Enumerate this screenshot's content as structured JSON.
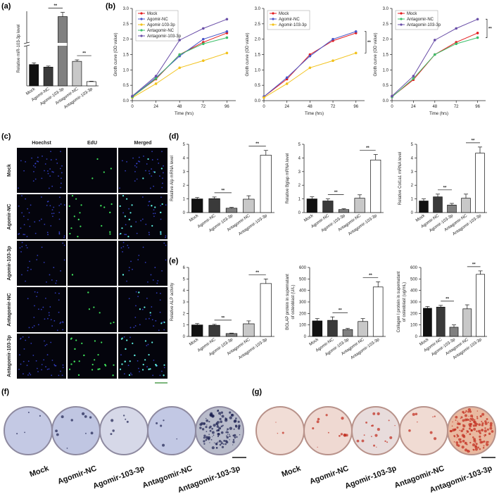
{
  "panel_labels": [
    "(a)",
    "(b)",
    "(c)",
    "(d)",
    "(e)",
    "(f)",
    "(g)"
  ],
  "chart_data": [
    {
      "type": "bar",
      "ylabel": "Relative miR-103-3p level",
      "categories": [
        "Mock",
        "Agomir-NC",
        "Agomir-103-3p",
        "Antagomir-NC",
        "Antagomir-103-3p"
      ],
      "values": [
        1.0,
        0.88,
        3.25,
        1.15,
        0.2
      ],
      "errors": [
        0.08,
        0.05,
        0.2,
        0.07,
        0.02
      ],
      "colors": [
        "#111111",
        "#3a3a3a",
        "#808080",
        "#c8c8c8",
        "#ffffff"
      ],
      "ylim": [
        0,
        3.5
      ],
      "annotations": [
        "**",
        "**"
      ]
    },
    {
      "type": "line",
      "xlabel": "Time (hrs)",
      "ylabel": "Groth curve (OD value)",
      "legend": "upper left",
      "x": [
        0,
        24,
        48,
        72,
        96
      ],
      "xlim": [
        0,
        105
      ],
      "xticks": [
        0,
        24,
        48,
        72,
        96
      ],
      "ylim": [
        0,
        3
      ],
      "yticks": [
        {
          "value": 0,
          "label": "0.0"
        },
        0.5,
        {
          "value": 1,
          "label": "1.0"
        },
        1.5,
        {
          "value": 2,
          "label": "2.0"
        },
        2.5,
        {
          "value": 3,
          "label": "3.0"
        }
      ],
      "series": [
        {
          "name": "Mock",
          "color": "#e41a1c",
          "values": [
            0.13,
            0.7,
            1.5,
            1.9,
            2.2
          ]
        },
        {
          "name": "Agomir-NC",
          "color": "#4a55c8",
          "values": [
            0.13,
            0.75,
            1.45,
            2.0,
            2.25
          ]
        },
        {
          "name": "Agomir-103-3p",
          "color": "#f2c21b",
          "values": [
            0.1,
            0.55,
            1.07,
            1.3,
            1.55
          ]
        },
        {
          "name": "Antagomir-NC",
          "color": "#3dbf6a",
          "values": [
            0.12,
            0.72,
            1.5,
            1.85,
            2.05
          ]
        },
        {
          "name": "Antagomir-103-3p",
          "color": "#6a4fa8",
          "values": [
            0.15,
            0.8,
            1.97,
            2.35,
            2.65
          ]
        }
      ]
    },
    {
      "type": "line",
      "xlabel": "Time (hrs)",
      "ylabel": "Groth curve (OD value)",
      "legend": "upper left",
      "x": [
        0,
        24,
        48,
        72,
        96
      ],
      "xlim": [
        0,
        105
      ],
      "xticks": [
        0,
        24,
        48,
        72,
        96
      ],
      "ylim": [
        0,
        3
      ],
      "yticks": [
        {
          "value": 0,
          "label": "0.0"
        },
        0.5,
        {
          "value": 1,
          "label": "1.0"
        },
        1.5,
        {
          "value": 2,
          "label": "2.0"
        },
        2.5,
        {
          "value": 3,
          "label": "3.0"
        }
      ],
      "annotations": [
        "**"
      ],
      "series": [
        {
          "name": "Mock",
          "color": "#e41a1c",
          "values": [
            0.13,
            0.7,
            1.5,
            1.95,
            2.2
          ]
        },
        {
          "name": "Agomir-NC",
          "color": "#4a55c8",
          "values": [
            0.13,
            0.75,
            1.45,
            2.0,
            2.25
          ]
        },
        {
          "name": "Agomir-103-3p",
          "color": "#f2c21b",
          "values": [
            0.1,
            0.55,
            1.07,
            1.3,
            1.55
          ]
        }
      ]
    },
    {
      "type": "line",
      "xlabel": "Time (hrs)",
      "ylabel": "Groth curve (OD value)",
      "legend": "upper left",
      "x": [
        0,
        24,
        48,
        72,
        96
      ],
      "xlim": [
        0,
        105
      ],
      "xticks": [
        0,
        24,
        48,
        72,
        96
      ],
      "ylim": [
        0,
        3
      ],
      "yticks": [
        {
          "value": 0,
          "label": "0.0"
        },
        0.5,
        {
          "value": 1,
          "label": "1.0"
        },
        1.5,
        {
          "value": 2,
          "label": "2.0"
        },
        2.5,
        {
          "value": 3,
          "label": "3.0"
        }
      ],
      "annotations": [
        "**"
      ],
      "series": [
        {
          "name": "Mock",
          "color": "#e41a1c",
          "values": [
            0.13,
            0.68,
            1.5,
            1.9,
            2.2
          ]
        },
        {
          "name": "Antagomir-NC",
          "color": "#3dbf6a",
          "values": [
            0.12,
            0.72,
            1.5,
            1.85,
            2.05
          ]
        },
        {
          "name": "Antagomir-103-3p",
          "color": "#6a4fa8",
          "values": [
            0.15,
            0.8,
            1.97,
            2.35,
            2.65
          ]
        }
      ]
    },
    {
      "type": "bar",
      "ylabel": "Relative Alp mRNA level",
      "categories": [
        "Mock",
        "Agomir-NC",
        "Agomir-103-3p",
        "Antagomir-NC",
        "Antagomir-103-3p"
      ],
      "values": [
        1.0,
        1.02,
        0.32,
        0.98,
        4.2
      ],
      "errors": [
        0.1,
        0.12,
        0.06,
        0.25,
        0.35
      ],
      "colors": [
        "#111111",
        "#3a3a3a",
        "#808080",
        "#c8c8c8",
        "#ffffff"
      ],
      "ylim": [
        0,
        5
      ],
      "yticks": [
        0,
        1,
        2,
        3,
        4,
        5
      ],
      "annotations": [
        "**",
        "**"
      ]
    },
    {
      "type": "bar",
      "ylabel": "Relative Bglap mRNA level",
      "categories": [
        "Mock",
        "Agomir-NC",
        "Agomir-103-3p",
        "Antagomir-NC",
        "Antagomir-103-3p"
      ],
      "values": [
        1.0,
        0.85,
        0.22,
        1.05,
        3.85
      ],
      "errors": [
        0.15,
        0.15,
        0.06,
        0.25,
        0.4
      ],
      "colors": [
        "#111111",
        "#3a3a3a",
        "#808080",
        "#c8c8c8",
        "#ffffff"
      ],
      "ylim": [
        0,
        5
      ],
      "yticks": [
        0,
        1,
        2,
        3,
        4,
        5
      ],
      "annotations": [
        "**",
        "**"
      ]
    },
    {
      "type": "bar",
      "ylabel": "Relative Col1a1 mRNA level",
      "categories": [
        "Mock",
        "Agomir-NC",
        "Agomir-103-3p",
        "Antagomir-NC",
        "Antagomir-103-3p"
      ],
      "values": [
        0.85,
        1.15,
        0.55,
        1.05,
        4.35
      ],
      "errors": [
        0.15,
        0.2,
        0.12,
        0.3,
        0.45
      ],
      "colors": [
        "#111111",
        "#3a3a3a",
        "#808080",
        "#c8c8c8",
        "#ffffff"
      ],
      "ylim": [
        0,
        5
      ],
      "yticks": [
        0,
        1,
        2,
        3,
        4,
        5
      ],
      "annotations": [
        "**",
        "**"
      ]
    },
    {
      "type": "bar",
      "ylabel": "Relative ALP activity",
      "categories": [
        "Mock",
        "Agomir-NC",
        "Agomir-103-3p",
        "Antagomir-NC",
        "Antagomir-103-3p"
      ],
      "values": [
        1.0,
        0.97,
        0.25,
        1.1,
        4.6
      ],
      "errors": [
        0.12,
        0.08,
        0.04,
        0.25,
        0.4
      ],
      "colors": [
        "#111111",
        "#3a3a3a",
        "#808080",
        "#c8c8c8",
        "#ffffff"
      ],
      "ylim": [
        0,
        6
      ],
      "yticks": [
        0,
        1,
        2,
        3,
        4,
        5,
        6
      ],
      "annotations": [
        "**",
        "**"
      ]
    },
    {
      "type": "bar",
      "ylabel": [
        "BGLAP protein in supernatant",
        "of osteoblast (U/L)"
      ],
      "categories": [
        "Mock",
        "Agomir-NC",
        "Agomir-103-3p",
        "Antagomir-NC",
        "Antagomir-103-3p"
      ],
      "values": [
        135,
        140,
        60,
        130,
        430
      ],
      "errors": [
        20,
        30,
        10,
        25,
        45
      ],
      "colors": [
        "#111111",
        "#3a3a3a",
        "#808080",
        "#c8c8c8",
        "#ffffff"
      ],
      "ylim": [
        0,
        600
      ],
      "yticks": [
        0,
        100,
        200,
        300,
        400,
        500,
        600
      ],
      "annotations": [
        "**",
        "**"
      ]
    },
    {
      "type": "bar",
      "ylabel": [
        "Collagen I protein in supernatant",
        "of osteoblast (ug/mL)"
      ],
      "categories": [
        "Mock",
        "Agomir-NC",
        "Agomir-103-3p",
        "Antagomir-NC",
        "Antagomir-103-3p"
      ],
      "values": [
        245,
        255,
        80,
        240,
        540
      ],
      "errors": [
        15,
        15,
        20,
        35,
        30
      ],
      "colors": [
        "#111111",
        "#3a3a3a",
        "#808080",
        "#c8c8c8",
        "#ffffff"
      ],
      "ylim": [
        0,
        600
      ],
      "yticks": [
        0,
        100,
        200,
        300,
        400,
        500,
        600
      ],
      "annotations": [
        "**",
        "**"
      ]
    }
  ],
  "micrographs": {
    "columns": [
      "Hoechst",
      "EdU",
      "Merged"
    ],
    "rows": [
      "Mock",
      "Agomir-NC",
      "Agomir-103-3p",
      "Antagomir-NC",
      "Antagomir-103-3p"
    ]
  },
  "dishes_f": {
    "labels": [
      "Mock",
      "Agomir-NC",
      "Agomir-103-3p",
      "Antagomir-NC",
      "Antagomir-103-3p"
    ]
  },
  "dishes_g": {
    "labels": [
      "Mock",
      "Agomir-NC",
      "Agomir-103-3p",
      "Antagomir-NC",
      "Antagomir-103-3p"
    ]
  }
}
